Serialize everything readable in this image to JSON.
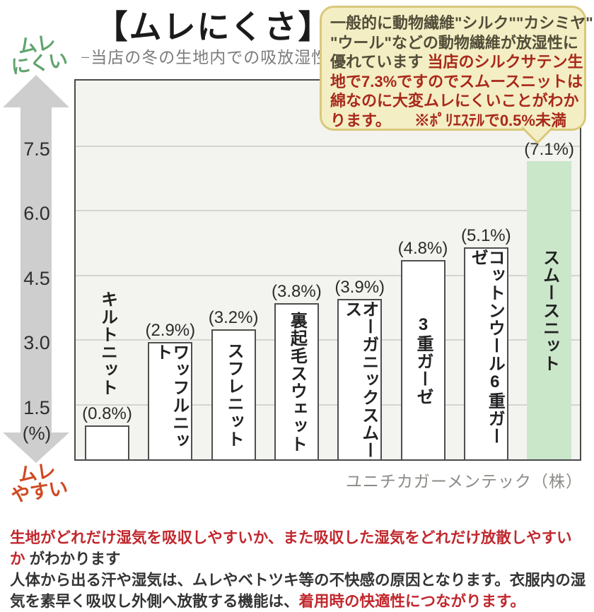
{
  "title": "【ムレにくさ】",
  "subtitle": "−当店の冬の生地内での吸放湿性 -",
  "axis": {
    "high_label_line1": "ムレ",
    "high_label_line2": "にくい",
    "low_label_line1": "ムレ",
    "low_label_line2": "やすい",
    "tick_labels": [
      "7.5",
      "6.0",
      "4.5",
      "3.0",
      "1.5"
    ],
    "tick_values": [
      7.5,
      6.0,
      4.5,
      3.0,
      1.5
    ],
    "unit_label": "(%)"
  },
  "bubble": {
    "lines": [
      [
        {
          "t": "一般的に動物繊維\"シルク\"\"カシミヤ\"",
          "c": "dark"
        }
      ],
      [
        {
          "t": "\"ウール\"などの動物繊維が放湿性に",
          "c": "dark"
        }
      ],
      [
        {
          "t": "優れています ",
          "c": "dark"
        },
        {
          "t": "当店のシルクサテン生",
          "c": "red"
        }
      ],
      [
        {
          "t": "地で7.3%ですのでスムースニットは",
          "c": "red"
        }
      ],
      [
        {
          "t": "綿なのに大変ムレにくいことがわか",
          "c": "red"
        }
      ],
      [
        {
          "t": "ります。",
          "c": "red"
        },
        {
          "t": "　　※ﾎﾟﾘｴｽﾃﾙで0.5%未満",
          "c": "red"
        }
      ]
    ]
  },
  "chart_data": {
    "type": "bar",
    "title": "ムレにくさ −当店の冬の生地内での吸放湿性−",
    "categories": [
      "キルトニット",
      "ワッフルニット",
      "スフレニット",
      "裏起毛スウェット",
      "オーガニックスムース",
      "3重ガーゼ",
      "コットンウール6重ガーゼ",
      "スムースニット"
    ],
    "values": [
      0.8,
      2.9,
      3.2,
      3.8,
      3.9,
      4.8,
      5.1,
      7.1
    ],
    "value_labels": [
      "(0.8%)",
      "(2.9%)",
      "(3.2%)",
      "(3.8%)",
      "(3.9%)",
      "(4.8%)",
      "(5.1%)",
      "(7.1%)"
    ],
    "ylabel": "(%)",
    "yticks": [
      1.5,
      3.0,
      4.5,
      6.0,
      7.5
    ],
    "ylim": [
      0,
      8.8
    ],
    "grid": true,
    "legend": false,
    "highlight_index": 7,
    "outside_label_indices": [
      0
    ],
    "bar_color": "#ffffff",
    "highlight_color": "#cbe7ca",
    "axis_high_meaning": "ムレにくい",
    "axis_low_meaning": "ムレやすい"
  },
  "credit": "ユニチカガーメンテック（株）",
  "footer": {
    "segments": [
      {
        "t": "生地がどれだけ湿気を吸収しやすいか、また吸収した湿気をどれだけ放散しやすいか",
        "c": "red"
      },
      {
        "t": " がわかります",
        "c": "dark"
      },
      {
        "br": true
      },
      {
        "t": "人体から出る汗や湿気は、ムレやベトツキ等の不快感の原因となります。衣服内の湿気を素早く吸収し外側へ放散する機能は、",
        "c": "dark"
      },
      {
        "t": "着用時の快適性につながります。",
        "c": "red"
      }
    ]
  },
  "colors": {
    "high_label_green": "#61a46e",
    "low_label_orange": "#cf4a22",
    "arrow_gray": "#cecece",
    "plot_bg": "#f3f3ef",
    "plot_border": "#4a4a4a",
    "gridline": "#d4d4d0",
    "bar_fill": "#ffffff",
    "bar_border": "#4f4f4f",
    "highlight_green": "#cbe7ca",
    "bubble_bg": "#f4eec4",
    "bubble_border": "#d9c87b",
    "bubble_text_dark": "#514d39",
    "bubble_text_red": "#a8291b",
    "footer_red": "#c1272d",
    "footer_dark": "#333333",
    "credit_gray": "#8b8b87"
  }
}
